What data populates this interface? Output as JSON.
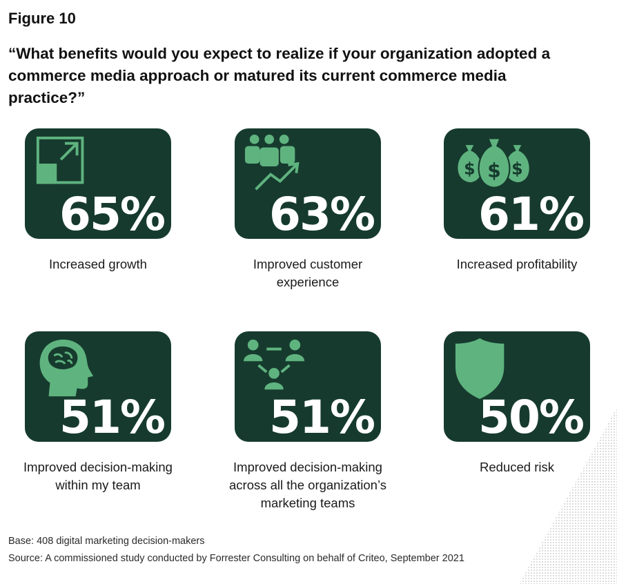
{
  "figure_label": "Figure 10",
  "question": "“What benefits would you expect to realize if your organization adopted a commerce media approach or matured its current commerce media practice?”",
  "colors": {
    "tile_bg": "#163b2e",
    "icon_green": "#5fb37f",
    "percent_text": "#ffffff"
  },
  "chart_data": {
    "type": "table",
    "categories": [
      "Increased growth",
      "Improved customer experience",
      "Increased profitability",
      "Improved decision-making within my team",
      "Improved decision-making across all the organization’s marketing teams",
      "Reduced risk"
    ],
    "values": [
      65,
      63,
      61,
      51,
      51,
      50
    ],
    "unit": "%",
    "items": [
      {
        "caption_lines": [
          "Increased growth"
        ],
        "value": 65,
        "label": "65%",
        "icon": "expand-arrow-icon"
      },
      {
        "caption_lines": [
          "Improved customer",
          "experience"
        ],
        "value": 63,
        "label": "63%",
        "icon": "customers-growth-icon"
      },
      {
        "caption_lines": [
          "Increased profitability"
        ],
        "value": 61,
        "label": "61%",
        "icon": "money-bags-icon"
      },
      {
        "caption_lines": [
          "Improved decision-making",
          "within my team"
        ],
        "value": 51,
        "label": "51%",
        "icon": "brain-head-icon"
      },
      {
        "caption_lines": [
          "Improved decision-making",
          "across all the organization’s",
          "marketing teams"
        ],
        "value": 51,
        "label": "51%",
        "icon": "team-network-icon"
      },
      {
        "caption_lines": [
          "Reduced risk"
        ],
        "value": 50,
        "label": "50%",
        "icon": "shield-icon"
      }
    ]
  },
  "footer": {
    "base": "Base: 408 digital marketing decision-makers",
    "source": "Source: A commissioned study conducted by Forrester Consulting on behalf of Criteo, September 2021"
  }
}
